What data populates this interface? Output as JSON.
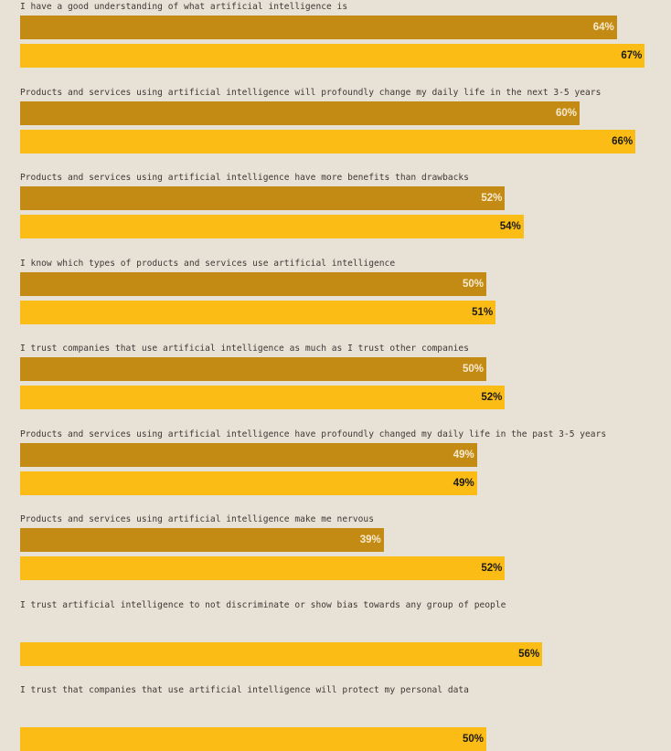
{
  "chart_data": {
    "type": "bar",
    "orientation": "horizontal",
    "value_suffix": "%",
    "xlim": [
      0,
      100
    ],
    "grid": false,
    "legend": "none",
    "colors": [
      "#c48b14",
      "#fbbd15"
    ],
    "categories": [
      "I have a good understanding of what artificial intelligence is",
      "Products and services using artificial intelligence will profoundly change my daily life in the next 3-5 years",
      "Products and services using artificial intelligence have more benefits than drawbacks",
      "I know which types of products and services use artificial intelligence",
      "I trust companies that use artificial intelligence as much as I trust other companies",
      "Products and services using artificial intelligence have profoundly changed my daily life in the past 3-5 years",
      "Products and services using artificial intelligence make me nervous",
      "I trust artificial intelligence to not discriminate or show bias towards any group of people",
      "I trust that companies that use artificial intelligence will protect my personal data"
    ],
    "series": [
      {
        "values": [
          64,
          60,
          52,
          50,
          50,
          49,
          39,
          null,
          null
        ]
      },
      {
        "values": [
          67,
          66,
          54,
          51,
          52,
          49,
          52,
          56,
          50
        ]
      }
    ]
  }
}
